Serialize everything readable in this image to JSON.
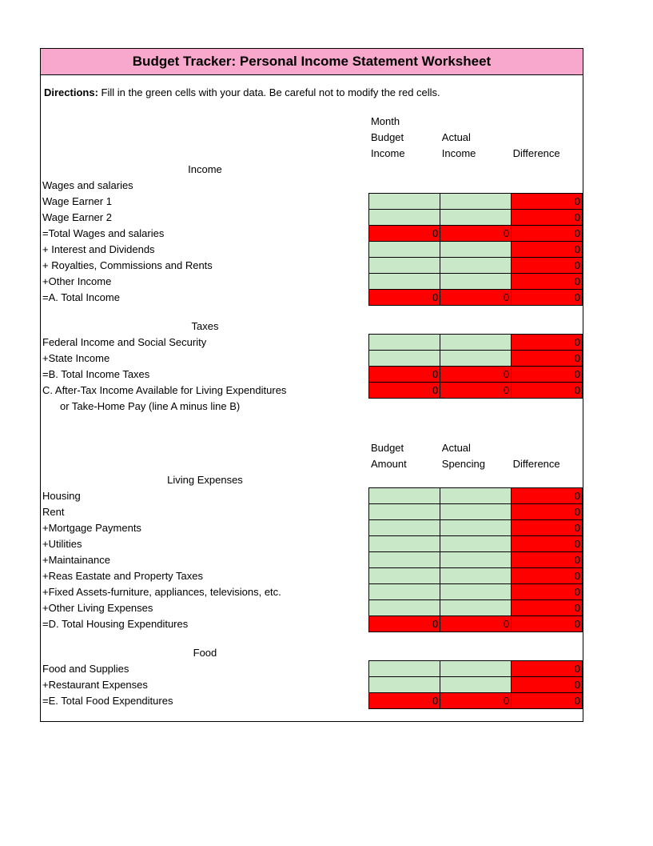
{
  "title": "Budget Tracker: Personal Income Statement Worksheet",
  "directions_label": "Directions:",
  "directions_text": " Fill in the green cells with your data.  Be careful not to modify the red cells.",
  "colors": {
    "title_bg": "#f8a8cc",
    "green_cell": "#c8e8c8",
    "red_cell": "#ff0000",
    "border": "#000000",
    "background": "#ffffff"
  },
  "headers1": {
    "month": "Month",
    "budget_income": "Budget Income",
    "actual_income": "Actual Income",
    "difference": "Difference"
  },
  "headers2": {
    "budget_amount": "Budget Amount",
    "actual_spending": "Actual Spencing",
    "difference": "Difference"
  },
  "sections": {
    "income": "Income",
    "taxes": "Taxes",
    "living_expenses": "Living Expenses",
    "food": "Food"
  },
  "rows": {
    "wages_salaries": "Wages and salaries",
    "wage_earner1": "Wage Earner 1",
    "wage_earner2": "Wage Earner 2",
    "total_wages": "=Total Wages and salaries",
    "interest_div": "+ Interest and Dividends",
    "royalties": "+ Royalties, Commissions and Rents",
    "other_income": "+Other Income",
    "a_total_income": "=A.  Total Income",
    "fed_income": "Federal Income and Social Security",
    "state_income": "+State Income",
    "b_total_taxes": "=B.  Total Income Taxes",
    "c_after_tax": "C.  After-Tax Income Available for Living Expenditures",
    "c_after_tax2": "or Take-Home Pay (line A minus line B)",
    "housing": "Housing",
    "rent": "Rent",
    "mortgage": "+Mortgage Payments",
    "utilities": "+Utilities",
    "maintenance": "+Maintainance",
    "real_estate": "+Reas Eastate and Property Taxes",
    "fixed_assets": "+Fixed Assets-furniture, appliances, televisions, etc.",
    "other_living": "+Other Living Expenses",
    "d_total_housing": "=D.  Total Housing Expenditures",
    "food_supplies": "Food and Supplies",
    "restaurant": "+Restaurant Expenses",
    "e_total_food": "=E.  Total Food Expenditures"
  },
  "values": {
    "zero": "0"
  }
}
